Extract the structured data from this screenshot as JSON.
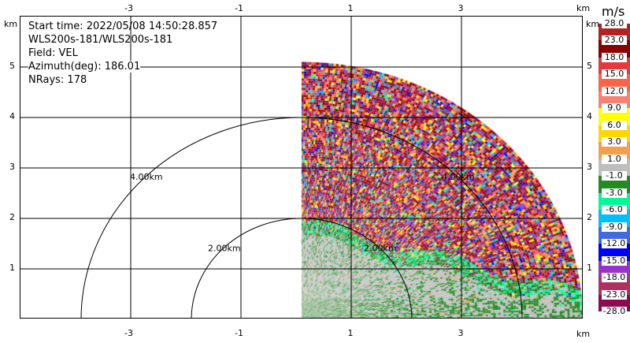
{
  "chart_data": {
    "type": "heatmap",
    "subtype": "radar-ppi",
    "info": {
      "start_time": "Start time: 2022/05/08 14:50:28.857",
      "instrument": "WLS200s-181/WLS200s-181",
      "field": "Field: VEL",
      "azimuth": "Azimuth(deg): 186.01",
      "nrays": "NRays: 178"
    },
    "x_unit": "km",
    "y_unit": "km",
    "x_ticks": [
      "-3",
      "-1",
      "1",
      "3"
    ],
    "y_ticks": [
      "1",
      "2",
      "3",
      "4",
      "5"
    ],
    "xlim": [
      -5.0,
      5.2
    ],
    "ylim": [
      0,
      6
    ],
    "grid": true,
    "range_rings": [
      {
        "radius_km": 2,
        "label": "2.00km"
      },
      {
        "radius_km": 4,
        "label": "4.00km"
      }
    ],
    "max_range_km": 5.1,
    "sector_deg": [
      0,
      90
    ],
    "colorbar": {
      "unit": "m/s",
      "labels": [
        "28.0",
        "23.0",
        "18.0",
        "15.0",
        "12.0",
        "9.0",
        "6.0",
        "3.0",
        "1.0",
        "-1.0",
        "-3.0",
        "-6.0",
        "-9.0",
        "-12.0",
        "-15.0",
        "-18.0",
        "-23.0",
        "-28.0"
      ],
      "colors": [
        "#B22222",
        "#8B0000",
        "#E8383D",
        "#FF6347",
        "#FA8072",
        "#FFFF00",
        "#FFD700",
        "#F4A04A",
        "#BEBEBE",
        "#228B22",
        "#00FA9A",
        "#00BFFF",
        "#4169E1",
        "#0000FF",
        "#9932CC",
        "#B03060",
        "#8B0A50"
      ]
    }
  }
}
